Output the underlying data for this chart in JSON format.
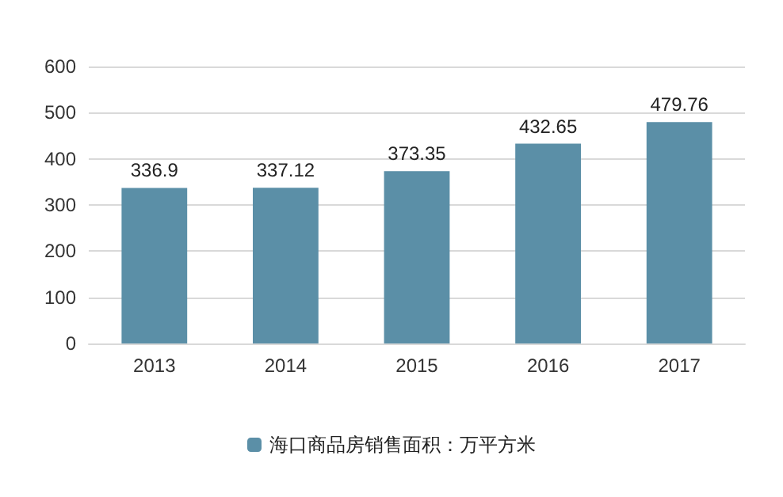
{
  "chart_data": {
    "type": "bar",
    "categories": [
      "2013",
      "2014",
      "2015",
      "2016",
      "2017"
    ],
    "series": [
      {
        "name": "海口商品房销售面积：万平方米",
        "color": "#5b8fa7",
        "values": [
          336.9,
          337.12,
          373.35,
          432.65,
          479.76
        ]
      }
    ],
    "ylim": [
      0,
      600
    ],
    "yticks": [
      0,
      100,
      200,
      300,
      400,
      500,
      600
    ],
    "grid": "y",
    "legend": "bottom",
    "data_labels": true
  }
}
